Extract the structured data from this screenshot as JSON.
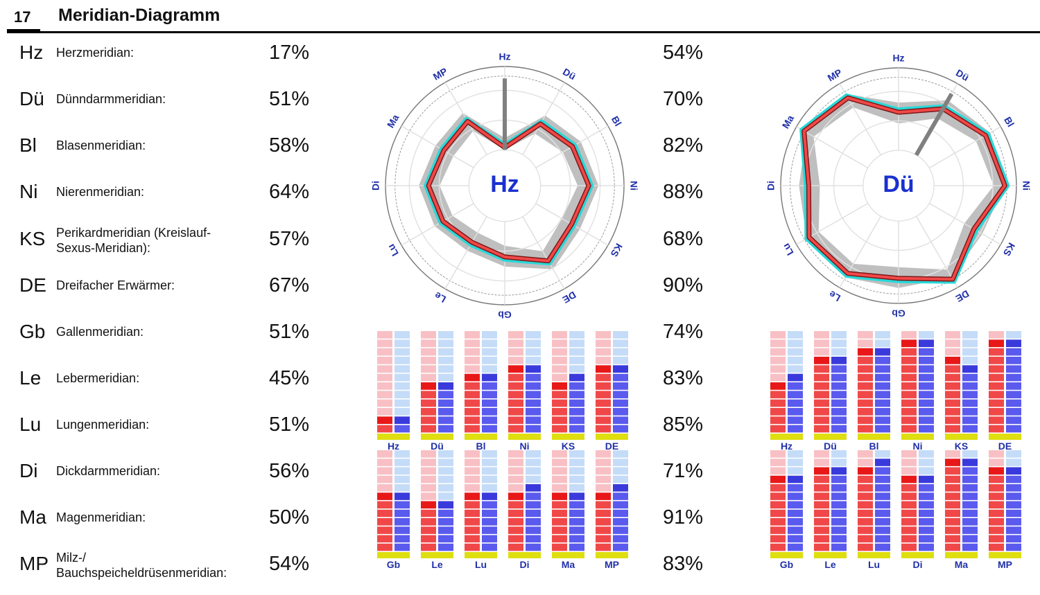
{
  "header": {
    "page_number": "17",
    "title": "Meridian-Diagramm"
  },
  "meridians": [
    {
      "abbr": "Hz",
      "name": "Herzmeridian:",
      "value1": "17%",
      "value2": "54%"
    },
    {
      "abbr": "Dü",
      "name": "Dünndarmmeridian:",
      "value1": "51%",
      "value2": "70%"
    },
    {
      "abbr": "Bl",
      "name": "Blasenmeridian:",
      "value1": "58%",
      "value2": "82%"
    },
    {
      "abbr": "Ni",
      "name": "Nierenmeridian:",
      "value1": "64%",
      "value2": "88%"
    },
    {
      "abbr": "KS",
      "name": "Perikardmeridian (Kreislauf-",
      "name2": "Sexus-Meridian):",
      "value1": "57%",
      "value2": "68%"
    },
    {
      "abbr": "DE",
      "name": "Dreifacher Erwärmer:",
      "value1": "67%",
      "value2": "90%"
    },
    {
      "abbr": "Gb",
      "name": "Gallenmeridian:",
      "value1": "51%",
      "value2": "74%"
    },
    {
      "abbr": "Le",
      "name": "Lebermeridian:",
      "value1": "45%",
      "value2": "83%"
    },
    {
      "abbr": "Lu",
      "name": "Lungenmeridian:",
      "value1": "51%",
      "value2": "85%"
    },
    {
      "abbr": "Di",
      "name": "Dickdarmmeridian:",
      "value1": "56%",
      "value2": "71%"
    },
    {
      "abbr": "Ma",
      "name": "Magenmeridian:",
      "value1": "50%",
      "value2": "91%"
    },
    {
      "abbr": "MP",
      "name": "Milz-/",
      "name2": "Bauchspeicheldrüsenmeridian:",
      "value1": "54%",
      "value2": "83%"
    }
  ],
  "colors": {
    "red": "#f04848",
    "cyan": "#28d8d8",
    "blue": "#5a5aee",
    "pink": "#f8c0c4",
    "lightblue": "#c4dcf8",
    "yellow": "#dede10",
    "gray": "#b8b8b8",
    "label": "#2030a8"
  },
  "chart_data": [
    {
      "type": "radar",
      "center_label": "Hz",
      "axes": [
        "Hz",
        "Dü",
        "Bl",
        "Ni",
        "KS",
        "DE",
        "Gb",
        "Le",
        "Lu",
        "Di",
        "Ma",
        "MP"
      ],
      "series": [
        {
          "values": [
            17,
            51,
            58,
            64,
            57,
            67,
            51,
            45,
            51,
            56,
            50,
            54
          ]
        }
      ]
    },
    {
      "type": "bar",
      "categories": [
        "Hz",
        "Dü",
        "Bl",
        "Ni",
        "KS",
        "DE"
      ],
      "series": [
        {
          "values": [
            2,
            6,
            7,
            8,
            6,
            8
          ]
        },
        {
          "values": [
            2,
            6,
            7,
            8,
            7,
            8
          ]
        }
      ],
      "ylim": [
        0,
        12
      ]
    },
    {
      "type": "bar",
      "categories": [
        "Gb",
        "Le",
        "Lu",
        "Di",
        "Ma",
        "MP"
      ],
      "series": [
        {
          "values": [
            7,
            6,
            7,
            7,
            7,
            7
          ]
        },
        {
          "values": [
            7,
            6,
            7,
            8,
            7,
            8
          ]
        }
      ],
      "ylim": [
        0,
        12
      ]
    },
    {
      "type": "radar",
      "center_label": "Dü",
      "axes": [
        "Hz",
        "Dü",
        "Bl",
        "Ni",
        "KS",
        "DE",
        "Gb",
        "Le",
        "Lu",
        "Di",
        "Ma",
        "MP"
      ],
      "series": [
        {
          "values": [
            54,
            70,
            82,
            88,
            68,
            90,
            74,
            83,
            85,
            71,
            91,
            83
          ]
        }
      ]
    },
    {
      "type": "bar",
      "categories": [
        "Hz",
        "Dü",
        "Bl",
        "Ni",
        "KS",
        "DE"
      ],
      "series": [
        {
          "values": [
            6,
            9,
            10,
            11,
            9,
            11
          ]
        },
        {
          "values": [
            7,
            9,
            10,
            11,
            8,
            11
          ]
        }
      ],
      "ylim": [
        0,
        12
      ]
    },
    {
      "type": "bar",
      "categories": [
        "Gb",
        "Le",
        "Lu",
        "Di",
        "Ma",
        "MP"
      ],
      "series": [
        {
          "values": [
            9,
            10,
            10,
            9,
            11,
            10
          ]
        },
        {
          "values": [
            9,
            10,
            11,
            9,
            11,
            10
          ]
        }
      ],
      "ylim": [
        0,
        12
      ]
    }
  ]
}
